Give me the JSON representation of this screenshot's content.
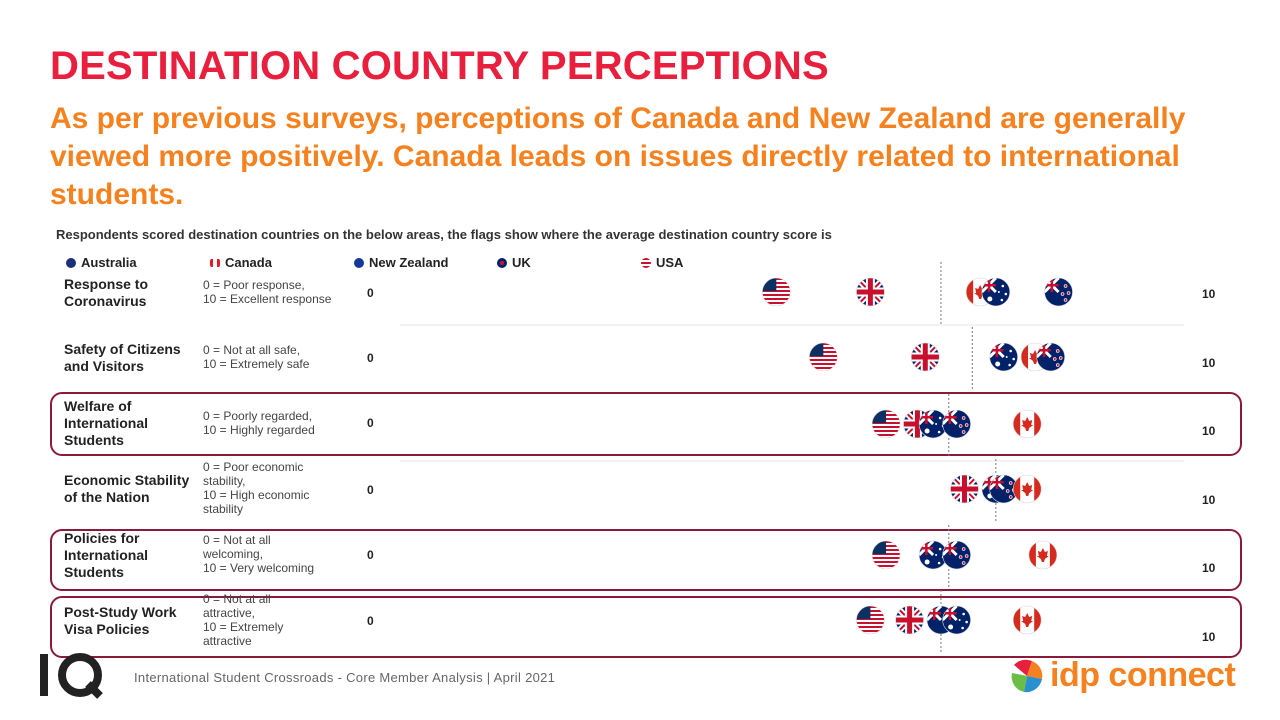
{
  "title": "DESTINATION COUNTRY PERCEPTIONS",
  "subtitle": "As per previous surveys, perceptions of Canada and New Zealand are generally viewed more positively.  Canada leads on issues directly related to international students.",
  "note": "Respondents scored destination countries on the below areas, the flags show where the average destination country score is",
  "footer": "International  Student  Crossroads  -  Core Member  Analysis | April  2021",
  "logos": {
    "left": "IQ",
    "right": "idp connect"
  },
  "colors": {
    "title": "#e8203e",
    "subtitle": "#f5821f",
    "highlight_border": "#8a1a3a"
  },
  "chart_data": {
    "type": "scatter",
    "xlim": [
      0,
      10
    ],
    "legend": [
      "Australia",
      "Canada",
      "New Zealand",
      "UK",
      "USA"
    ],
    "legend_icons": [
      "australia-flag-icon",
      "canada-flag-icon",
      "new-zealand-flag-icon",
      "uk-flag-icon",
      "usa-flag-icon"
    ],
    "rows": [
      {
        "name": "Response to Coronavirus",
        "name_lines": [
          "Response to",
          "Coronavirus"
        ],
        "scale_lines": [
          "0 = Poor response,",
          "10 = Excellent response"
        ],
        "min_label": "0",
        "max_label": "10",
        "highlight": false,
        "average": 6.9,
        "values": {
          "USA": 4.8,
          "UK": 6.0,
          "Canada": 7.4,
          "Australia": 7.6,
          "New Zealand": 8.4
        }
      },
      {
        "name": "Safety of Citizens and Visitors",
        "name_lines": [
          "Safety of Citizens",
          "and Visitors"
        ],
        "scale_lines": [
          "0 = Not at all safe,",
          "10 = Extremely safe"
        ],
        "min_label": "0",
        "max_label": "10",
        "highlight": false,
        "average": 7.3,
        "values": {
          "USA": 5.4,
          "UK": 6.7,
          "Australia": 7.7,
          "Canada": 8.1,
          "New Zealand": 8.3
        }
      },
      {
        "name": "Welfare of International Students",
        "name_lines": [
          "Welfare of",
          "International",
          "Students"
        ],
        "scale_lines": [
          "0 = Poorly regarded,",
          "10 = Highly regarded"
        ],
        "min_label": "0",
        "max_label": "10",
        "highlight": true,
        "average": 7.0,
        "values": {
          "USA": 6.2,
          "UK": 6.6,
          "Australia": 6.8,
          "New Zealand": 7.1,
          "Canada": 8.0
        }
      },
      {
        "name": "Economic Stability of the Nation",
        "name_lines": [
          "Economic Stability",
          "of the Nation"
        ],
        "scale_lines": [
          "0 = Poor economic",
          "stability,",
          "10 = High economic",
          "stability"
        ],
        "min_label": "0",
        "max_label": "10",
        "highlight": false,
        "average": 7.6,
        "values": {
          "UK": 7.2,
          "Australia": 7.6,
          "New Zealand": 7.7,
          "Canada": 8.0
        }
      },
      {
        "name": "Policies for International Students",
        "name_lines": [
          "Policies for",
          "International",
          "Students"
        ],
        "scale_lines": [
          "0 = Not at all",
          "welcoming,",
          "10 = Very welcoming"
        ],
        "min_label": "0",
        "max_label": "10",
        "highlight": true,
        "average": 7.0,
        "values": {
          "USA": 6.2,
          "UK": 6.8,
          "Australia": 6.8,
          "New Zealand": 7.1,
          "Canada": 8.2
        }
      },
      {
        "name": "Post-Study Work Visa Policies",
        "name_lines": [
          "Post-Study Work",
          "Visa Policies"
        ],
        "scale_lines": [
          "0 = Not at all",
          "attractive,",
          "10 = Extremely",
          "attractive"
        ],
        "min_label": "0",
        "max_label": "10",
        "highlight": true,
        "average": 6.9,
        "values": {
          "USA": 6.0,
          "UK": 6.5,
          "New Zealand": 6.9,
          "Australia": 7.1,
          "Canada": 8.0
        }
      }
    ]
  }
}
